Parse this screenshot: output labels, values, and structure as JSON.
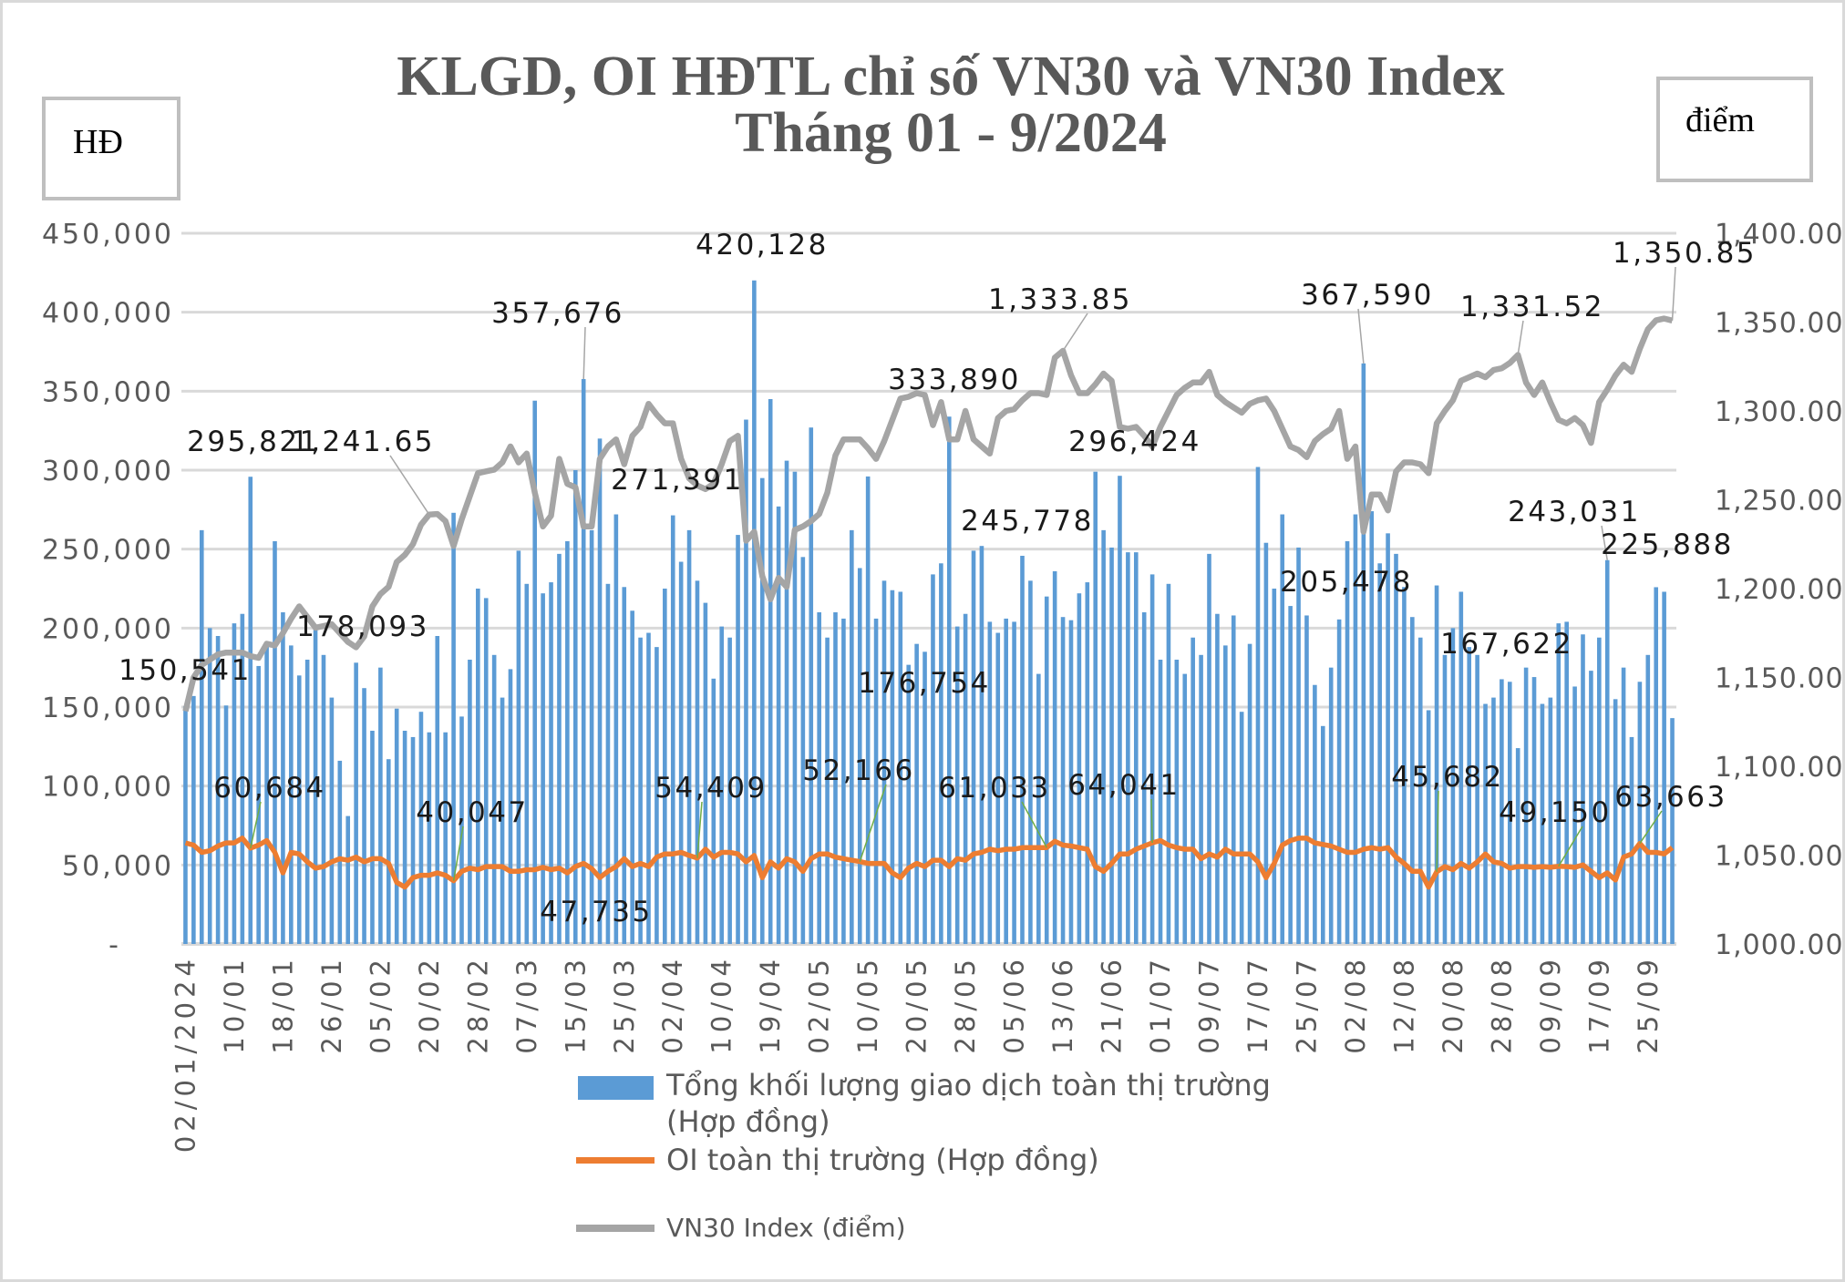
{
  "chart_data": {
    "type": "bar+line",
    "title": [
      "KLGD, OI HĐTL chỉ số VN30 và VN30 Index",
      "Tháng 01 - 9/2024"
    ],
    "y_left_label": "HĐ",
    "y_right_label": "điểm",
    "ylim_left": [
      0,
      450000
    ],
    "ylim_right": [
      1000,
      1400
    ],
    "y_left_ticks": [
      "-",
      "50,000",
      "100,000",
      "150,000",
      "200,000",
      "250,000",
      "300,000",
      "350,000",
      "400,000",
      "450,000"
    ],
    "y_right_ticks": [
      "1,000.00",
      "1,050.00",
      "1,100.00",
      "1,150.00",
      "1,200.00",
      "1,250.00",
      "1,300.00",
      "1,350.00",
      "1,400.00"
    ],
    "x_tick_labels": [
      "02/01/2024",
      "10/01",
      "18/01",
      "26/01",
      "05/02",
      "20/02",
      "28/02",
      "07/03",
      "15/03",
      "25/03",
      "02/04",
      "10/04",
      "19/04",
      "02/05",
      "10/05",
      "20/05",
      "28/05",
      "05/06",
      "13/06",
      "21/06",
      "01/07",
      "09/07",
      "17/07",
      "25/07",
      "02/08",
      "12/08",
      "20/08",
      "28/08",
      "09/09",
      "17/09",
      "25/09"
    ],
    "grid": true,
    "legend_position": "bottom",
    "series": [
      {
        "name": "Tổng khối lượng giao dịch toàn thị trường (Hợp đồng)",
        "legend_line1": "Tổng khối lượng giao dịch toàn thị trường",
        "legend_line2": "(Hợp đồng)",
        "type": "bar",
        "axis": "left",
        "color": "#5b9bd5",
        "values": [
          150541,
          157000,
          262000,
          200000,
          195000,
          151000,
          203000,
          209000,
          295821,
          176000,
          190000,
          255000,
          210000,
          189000,
          170000,
          180000,
          201000,
          183000,
          156000,
          116000,
          81000,
          178093,
          162000,
          135000,
          175000,
          117000,
          149000,
          135000,
          131000,
          147000,
          134000,
          195000,
          134000,
          273000,
          144000,
          180000,
          225000,
          219000,
          183000,
          156000,
          174000,
          249000,
          228000,
          344000,
          222000,
          229000,
          247000,
          255000,
          300000,
          357676,
          262000,
          320000,
          228000,
          272000,
          226000,
          211000,
          194000,
          197000,
          188000,
          225000,
          271391,
          242000,
          262000,
          230000,
          216000,
          168000,
          201000,
          194000,
          259000,
          332000,
          420128,
          295000,
          345000,
          277000,
          306000,
          299000,
          245000,
          327000,
          210000,
          194000,
          210000,
          206000,
          262000,
          238000,
          296000,
          206000,
          230000,
          224000,
          223000,
          176754,
          190000,
          185000,
          234000,
          241000,
          333890,
          201000,
          209000,
          249000,
          252000,
          204000,
          197000,
          206000,
          204000,
          245778,
          230000,
          171000,
          220000,
          236000,
          207000,
          205000,
          222000,
          229000,
          299000,
          262000,
          251000,
          296424,
          248000,
          248000,
          210000,
          234000,
          180000,
          228000,
          180000,
          171000,
          194000,
          183000,
          247000,
          209000,
          189000,
          208000,
          147000,
          190000,
          302000,
          254000,
          225000,
          272000,
          214000,
          251000,
          208000,
          164000,
          138000,
          175000,
          205478,
          255000,
          272000,
          367590,
          274000,
          241000,
          260000,
          247000,
          226000,
          207000,
          194000,
          148000,
          227000,
          183000,
          200000,
          223000,
          188000,
          183000,
          152000,
          156000,
          167622,
          166000,
          124000,
          175000,
          169000,
          152000,
          156000,
          203000,
          204000,
          163000,
          196000,
          173000,
          194000,
          243031,
          155000,
          175000,
          131000,
          166000,
          183000,
          225888,
          223000,
          143000
        ]
      },
      {
        "name": "OI toàn thị trường (Hợp đồng)",
        "type": "line",
        "axis": "left",
        "color": "#ed7d31",
        "values": [
          64000,
          62600,
          58000,
          59000,
          62000,
          64000,
          64000,
          67000,
          60684,
          62600,
          65500,
          58000,
          45000,
          58000,
          57000,
          52000,
          48000,
          49000,
          52000,
          54000,
          53000,
          55000,
          52000,
          54000,
          54000,
          51000,
          39000,
          36000,
          42000,
          43500,
          43500,
          45000,
          43500,
          40047,
          46000,
          48000,
          47000,
          49000,
          49000,
          49000,
          46000,
          46000,
          47000,
          47000,
          48500,
          47000,
          48000,
          45000,
          49000,
          51000,
          47735,
          42000,
          46000,
          49000,
          54000,
          49000,
          51000,
          49000,
          55000,
          57000,
          57000,
          58000,
          56000,
          54409,
          60000,
          55000,
          58000,
          58000,
          57000,
          52000,
          56000,
          42000,
          52000,
          48000,
          54000,
          52000,
          46000,
          54000,
          57000,
          57000,
          55000,
          54000,
          53000,
          52166,
          51000,
          51000,
          51000,
          45000,
          42000,
          48000,
          51000,
          49000,
          53000,
          53000,
          49000,
          54000,
          53000,
          57000,
          58000,
          60000,
          59000,
          60000,
          60000,
          61000,
          61000,
          61000,
          61033,
          65000,
          62600,
          62000,
          61000,
          60000,
          49000,
          46000,
          51000,
          57000,
          57000,
          60000,
          62000,
          64041,
          65500,
          62600,
          61000,
          60000,
          60000,
          54000,
          57000,
          55000,
          60000,
          57000,
          57000,
          57000,
          52000,
          42000,
          51000,
          62600,
          65500,
          67000,
          67000,
          64000,
          63000,
          62000,
          60000,
          58000,
          58000,
          60000,
          61000,
          60000,
          61000,
          55000,
          51000,
          46000,
          46000,
          36000,
          45682,
          49000,
          47000,
          51000,
          48000,
          52000,
          57000,
          52000,
          51000,
          48000,
          49000,
          49000,
          48500,
          49000,
          48500,
          49150,
          49000,
          48500,
          50000,
          46000,
          42000,
          45000,
          40500,
          55000,
          57000,
          63663,
          58000,
          58000,
          57000,
          61000
        ]
      },
      {
        "name": "VN30 Index (điểm)",
        "type": "line",
        "axis": "right",
        "color": "#a5a5a5",
        "values": [
          1131,
          1150,
          1157,
          1160,
          1163,
          1164,
          1164,
          1164,
          1162,
          1161,
          1169,
          1168,
          1175,
          1183,
          1190,
          1184,
          1178,
          1179,
          1180,
          1175,
          1170,
          1167,
          1173,
          1190,
          1197,
          1201,
          1215,
          1219,
          1225,
          1236,
          1241.65,
          1242,
          1238,
          1224,
          1239,
          1252,
          1265,
          1266,
          1267,
          1271,
          1280,
          1271,
          1276,
          1254,
          1235,
          1241,
          1273,
          1259,
          1257,
          1235,
          1235,
          1273,
          1280,
          1284,
          1270,
          1286,
          1291,
          1304,
          1298,
          1293,
          1293,
          1273,
          1262,
          1258,
          1256,
          1259,
          1270,
          1283,
          1286,
          1227,
          1232,
          1207,
          1194,
          1206,
          1201,
          1233,
          1235,
          1238,
          1242,
          1254,
          1275,
          1284,
          1284,
          1284,
          1279,
          1273,
          1283,
          1295,
          1307,
          1308,
          1310,
          1309,
          1292,
          1305,
          1284,
          1284,
          1300,
          1284,
          1280,
          1276,
          1296,
          1300,
          1301,
          1306,
          1310,
          1310,
          1309,
          1330,
          1333.85,
          1320,
          1310,
          1310,
          1315,
          1321,
          1317,
          1291,
          1290,
          1291,
          1286,
          1280,
          1291,
          1300,
          1309,
          1313,
          1316,
          1316,
          1322,
          1309,
          1305,
          1302,
          1299,
          1304,
          1306,
          1307,
          1300,
          1290,
          1280,
          1278,
          1274,
          1283,
          1287,
          1290,
          1300,
          1273,
          1280,
          1232,
          1253,
          1253,
          1244,
          1266,
          1271,
          1271,
          1270,
          1265,
          1293,
          1300,
          1306,
          1317,
          1319,
          1321,
          1319,
          1323,
          1324,
          1327,
          1331.52,
          1316,
          1309,
          1316,
          1305,
          1295,
          1293,
          1296,
          1292,
          1282,
          1305,
          1312,
          1320,
          1326,
          1322,
          1335,
          1346,
          1351,
          1352,
          1350.85
        ]
      }
    ],
    "data_labels": [
      {
        "series": 0,
        "index": 0,
        "text": "150,541"
      },
      {
        "series": 0,
        "index": 8,
        "text": "295,821"
      },
      {
        "series": 0,
        "index": 21,
        "text": "178,093"
      },
      {
        "series": 0,
        "index": 49,
        "text": "357,676"
      },
      {
        "series": 0,
        "index": 70,
        "text": "420,128"
      },
      {
        "series": 0,
        "index": 60,
        "text": "271,391"
      },
      {
        "series": 0,
        "index": 94,
        "text": "333,890"
      },
      {
        "series": 0,
        "index": 103,
        "text": "245,778"
      },
      {
        "series": 0,
        "index": 89,
        "text": "176,754"
      },
      {
        "series": 0,
        "index": 115,
        "text": "296,424"
      },
      {
        "series": 0,
        "index": 145,
        "text": "367,590"
      },
      {
        "series": 0,
        "index": 142,
        "text": "205,478"
      },
      {
        "series": 0,
        "index": 162,
        "text": "167,622"
      },
      {
        "series": 0,
        "index": 175,
        "text": "243,031"
      },
      {
        "series": 0,
        "index": 181,
        "text": "225,888"
      },
      {
        "series": 2,
        "index": 30,
        "text": "1,241.65"
      },
      {
        "series": 2,
        "index": 108,
        "text": "1,333.85"
      },
      {
        "series": 2,
        "index": 164,
        "text": "1,331.52"
      },
      {
        "series": 2,
        "index": 183,
        "text": "1,350.85"
      },
      {
        "series": 1,
        "index": 8,
        "text": "60,684"
      },
      {
        "series": 1,
        "index": 33,
        "text": "40,047"
      },
      {
        "series": 1,
        "index": 50,
        "text": "47,735"
      },
      {
        "series": 1,
        "index": 63,
        "text": "54,409"
      },
      {
        "series": 1,
        "index": 83,
        "text": "52,166"
      },
      {
        "series": 1,
        "index": 106,
        "text": "61,033"
      },
      {
        "series": 1,
        "index": 119,
        "text": "64,041"
      },
      {
        "series": 1,
        "index": 154,
        "text": "45,682"
      },
      {
        "series": 1,
        "index": 169,
        "text": "49,150"
      },
      {
        "series": 1,
        "index": 179,
        "text": "63,663"
      }
    ]
  }
}
